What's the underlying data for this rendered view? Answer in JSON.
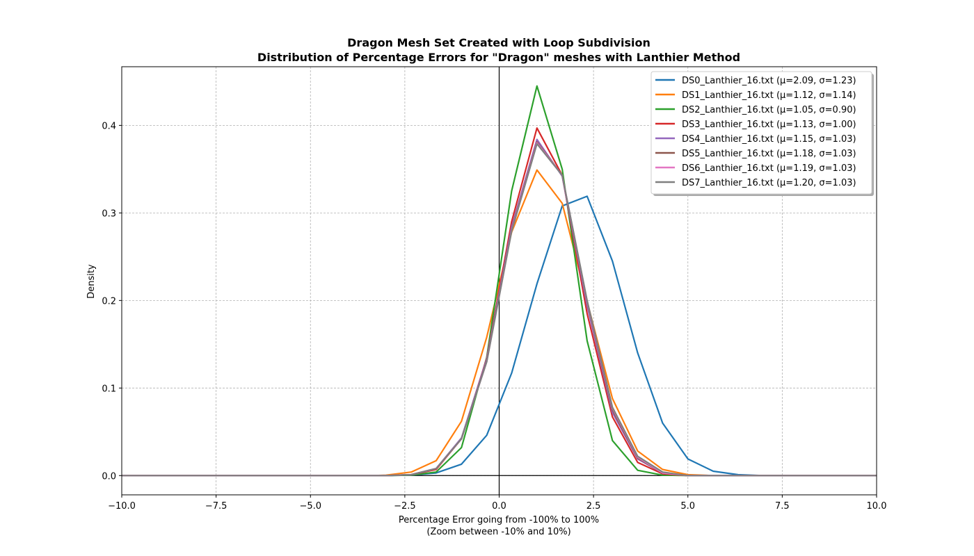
{
  "chart_data": {
    "type": "line",
    "title": "Dragon Mesh Set Created with Loop Subdivision",
    "subtitle": "Distribution of Percentage Errors for \"Dragon\" meshes with Lanthier Method",
    "xlabel": "Percentage Error going from -100% to 100%",
    "xlabel_line2": "(Zoom between -10% and 10%)",
    "ylabel": "Density",
    "xlim": [
      -10,
      10
    ],
    "ylim": [
      -0.022,
      0.467
    ],
    "x_ticks": [
      -10,
      -7.5,
      -5,
      -2.5,
      0,
      2.5,
      5,
      7.5,
      10
    ],
    "x_tick_labels": [
      "−10.0",
      "−7.5",
      "−5.0",
      "−2.5",
      "0.0",
      "2.5",
      "5.0",
      "7.5",
      "10.0"
    ],
    "y_ticks": [
      0,
      0.1,
      0.2,
      0.3,
      0.4
    ],
    "y_tick_labels": [
      "0.0",
      "0.1",
      "0.2",
      "0.3",
      "0.4"
    ],
    "grid": true,
    "legend_position": "top-right",
    "x": [
      -10,
      -9.33,
      -8.67,
      -8.0,
      -7.33,
      -6.67,
      -6.0,
      -5.33,
      -4.67,
      -4.0,
      -3.33,
      -3.0,
      -2.33,
      -1.67,
      -1.0,
      -0.33,
      0.33,
      1.0,
      1.67,
      2.33,
      3.0,
      3.67,
      4.33,
      5.0,
      5.67,
      6.33,
      7.0,
      7.67,
      8.33,
      9.0,
      9.67,
      10.0
    ],
    "series": [
      {
        "name": "DS0_Lanthier_16.txt (μ=2.09, σ=1.23)",
        "color": "#1f77b4",
        "values": [
          0,
          0,
          0,
          0,
          0,
          0,
          0,
          0,
          0,
          0,
          0,
          0,
          0.0005,
          0.003,
          0.013,
          0.046,
          0.117,
          0.219,
          0.308,
          0.319,
          0.245,
          0.14,
          0.06,
          0.019,
          0.005,
          0.001,
          0,
          0,
          0,
          0,
          0,
          0
        ]
      },
      {
        "name": "DS1_Lanthier_16.txt (μ=1.12, σ=1.14)",
        "color": "#ff7f0e",
        "values": [
          0,
          0,
          0,
          0,
          0,
          0,
          0,
          0,
          0,
          0,
          0,
          0.0005,
          0.004,
          0.017,
          0.062,
          0.158,
          0.278,
          0.349,
          0.311,
          0.199,
          0.088,
          0.028,
          0.007,
          0.001,
          0,
          0,
          0,
          0,
          0,
          0,
          0,
          0
        ]
      },
      {
        "name": "DS2_Lanthier_16.txt (μ=1.05, σ=0.90)",
        "color": "#2ca02c",
        "values": [
          0,
          0,
          0,
          0,
          0,
          0,
          0,
          0,
          0,
          0,
          0,
          0,
          0.0005,
          0.004,
          0.032,
          0.135,
          0.325,
          0.445,
          0.35,
          0.154,
          0.04,
          0.006,
          0.0005,
          0,
          0,
          0,
          0,
          0,
          0,
          0,
          0,
          0
        ]
      },
      {
        "name": "DS3_Lanthier_16.txt (μ=1.13, σ=1.00)",
        "color": "#d62728",
        "values": [
          0,
          0,
          0,
          0,
          0,
          0,
          0,
          0,
          0,
          0,
          0,
          0,
          0.001,
          0.007,
          0.042,
          0.134,
          0.29,
          0.397,
          0.343,
          0.185,
          0.067,
          0.015,
          0.002,
          0,
          0,
          0,
          0,
          0,
          0,
          0,
          0,
          0
        ]
      },
      {
        "name": "DS4_Lanthier_16.txt (μ=1.15, σ=1.03)",
        "color": "#9467bd",
        "values": [
          0,
          0,
          0,
          0,
          0,
          0,
          0,
          0,
          0,
          0,
          0,
          0,
          0.001,
          0.008,
          0.043,
          0.133,
          0.284,
          0.384,
          0.342,
          0.194,
          0.072,
          0.019,
          0.003,
          0,
          0,
          0,
          0,
          0,
          0,
          0,
          0,
          0
        ]
      },
      {
        "name": "DS5_Lanthier_16.txt (μ=1.18, σ=1.03)",
        "color": "#8c564b",
        "values": [
          0,
          0,
          0,
          0,
          0,
          0,
          0,
          0,
          0,
          0,
          0,
          0,
          0.001,
          0.008,
          0.042,
          0.131,
          0.281,
          0.381,
          0.343,
          0.198,
          0.075,
          0.02,
          0.003,
          0,
          0,
          0,
          0,
          0,
          0,
          0,
          0,
          0
        ]
      },
      {
        "name": "DS6_Lanthier_16.txt (μ=1.19, σ=1.03)",
        "color": "#e377c2",
        "values": [
          0,
          0,
          0,
          0,
          0,
          0,
          0,
          0,
          0,
          0,
          0,
          0,
          0.001,
          0.008,
          0.042,
          0.13,
          0.28,
          0.38,
          0.343,
          0.199,
          0.077,
          0.021,
          0.003,
          0,
          0,
          0,
          0,
          0,
          0,
          0,
          0,
          0
        ]
      },
      {
        "name": "DS7_Lanthier_16.txt (μ=1.20, σ=1.03)",
        "color": "#7f7f7f",
        "values": [
          0,
          0,
          0,
          0,
          0,
          0,
          0,
          0,
          0,
          0,
          0,
          0,
          0.001,
          0.008,
          0.042,
          0.13,
          0.279,
          0.379,
          0.343,
          0.2,
          0.078,
          0.022,
          0.004,
          0,
          0,
          0,
          0,
          0,
          0,
          0,
          0,
          0
        ]
      }
    ]
  }
}
